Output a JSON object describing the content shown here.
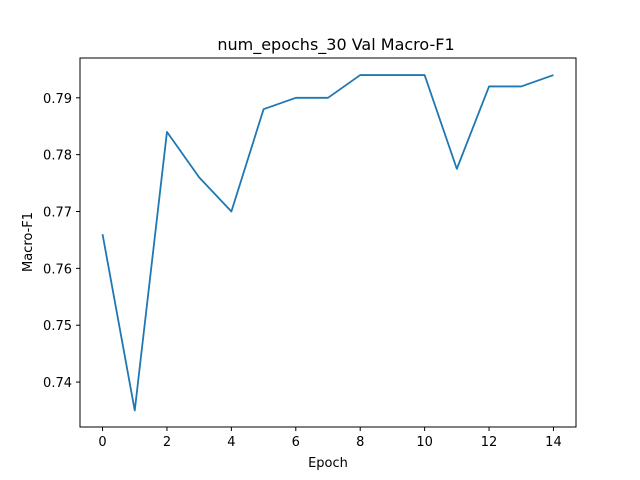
{
  "chart_data": {
    "type": "line",
    "title": "num_epochs_30 Val Macro-F1",
    "xlabel": "Epoch",
    "ylabel": "Macro-F1",
    "xlim": [
      -0.7,
      14.7
    ],
    "ylim": [
      0.7321,
      0.797
    ],
    "xticks": [
      0,
      2,
      4,
      6,
      8,
      10,
      12,
      14
    ],
    "yticks": [
      0.74,
      0.75,
      0.76,
      0.77,
      0.78,
      0.79
    ],
    "xtick_labels": [
      "0",
      "2",
      "4",
      "6",
      "8",
      "10",
      "12",
      "14"
    ],
    "ytick_labels": [
      "0.74",
      "0.75",
      "0.76",
      "0.77",
      "0.78",
      "0.79"
    ],
    "grid": false,
    "legend": "none",
    "color": "#1f77b4",
    "series": [
      {
        "x": [
          0,
          1,
          2,
          3,
          4,
          5,
          6,
          7,
          8,
          9,
          10,
          11,
          12,
          13,
          14
        ],
        "values": [
          0.766,
          0.735,
          0.784,
          0.776,
          0.77,
          0.788,
          0.79,
          0.79,
          0.794,
          0.794,
          0.794,
          0.7775,
          0.792,
          0.792,
          0.794
        ]
      }
    ]
  }
}
